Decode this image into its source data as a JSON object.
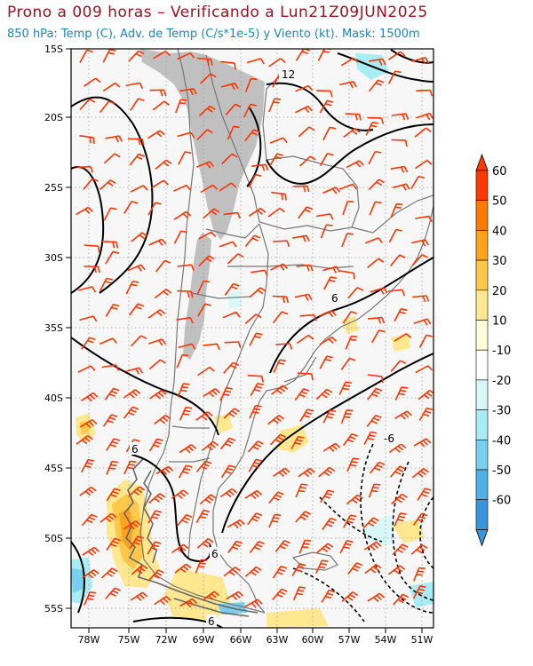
{
  "title": "Prono a 009 horas – Verificando a Lun21Z09JUN2025",
  "subtitle": "850 hPa: Temp (C), Adv. de Temp (C/s*1e-5) y Viento (kt). Mask: 1500m",
  "lat_labels": [
    "15S",
    "20S",
    "25S",
    "30S",
    "35S",
    "40S",
    "45S",
    "50S",
    "55S"
  ],
  "lon_labels": [
    "78W",
    "75W",
    "72W",
    "69W",
    "66W",
    "63W",
    "60W",
    "57W",
    "54W",
    "51W"
  ],
  "contour_labels": {
    "c12": "12",
    "c6a": "6",
    "c6b": "6",
    "c6c": "6",
    "c6d": "6",
    "cneg6": "-6"
  },
  "colorbar": {
    "labels": [
      "60",
      "50",
      "40",
      "30",
      "20",
      "10",
      "-10",
      "-20",
      "-30",
      "-40",
      "-50",
      "-60"
    ],
    "colors": [
      "#ff3a00",
      "#ff7a00",
      "#ffa21e",
      "#ffc84a",
      "#ffe890",
      "#ffffd8",
      "#ffffff",
      "#d8f8f8",
      "#a8ecf4",
      "#78d0f0",
      "#50b0e8",
      "#3a96dc"
    ]
  },
  "colors": {
    "title": "#a01020",
    "subtitle": "#1a88c0",
    "wind_barb": "#ff3300",
    "mask": "#c0c0c0",
    "background": "#f7f7f7"
  }
}
